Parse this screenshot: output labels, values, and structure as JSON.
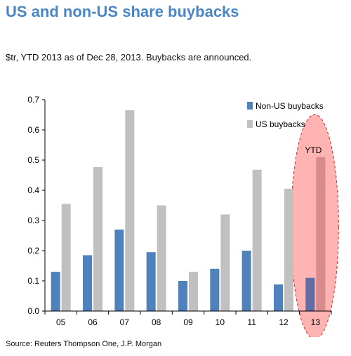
{
  "header": {
    "title": "US and non-US share buybacks",
    "subtitle": "$tr, YTD 2013 as of Dec 28, 2013. Buybacks are announced."
  },
  "footer": {
    "source": "Source: Reuters Thompson One, J.P. Morgan"
  },
  "colors": {
    "title": "#4a86c5",
    "non_us": "#4f81bd",
    "us": "#c0c0c0",
    "highlight_fill": "#ffb3b3",
    "highlight_stroke": "#d62828"
  },
  "chart_data": {
    "type": "bar",
    "title": "US and non-US share buybacks",
    "subtitle": "$tr, YTD 2013 as of Dec 28, 2013. Buybacks are announced.",
    "categories": [
      "05",
      "06",
      "07",
      "08",
      "09",
      "10",
      "11",
      "12",
      "13"
    ],
    "series": [
      {
        "name": "Non-US buybacks",
        "values": [
          0.13,
          0.185,
          0.27,
          0.195,
          0.1,
          0.14,
          0.2,
          0.088,
          0.11
        ]
      },
      {
        "name": "US buybacks",
        "values": [
          0.355,
          0.477,
          0.665,
          0.35,
          0.13,
          0.32,
          0.468,
          0.405,
          0.51
        ]
      }
    ],
    "xlabel": "",
    "ylabel": "",
    "ylim": [
      0,
      0.7
    ],
    "yticks": [
      "0.0",
      "0.1",
      "0.2",
      "0.3",
      "0.4",
      "0.5",
      "0.6",
      "0.7"
    ],
    "legend": "top-right",
    "grid": false,
    "annotations": [
      {
        "text": "YTD",
        "category": "13"
      }
    ]
  }
}
